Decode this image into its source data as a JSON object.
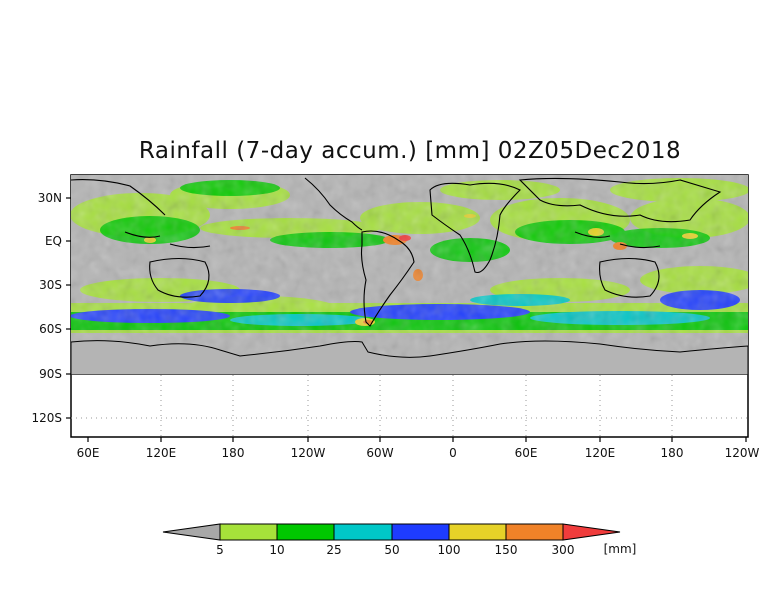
{
  "title": "Rainfall (7-day accum.) [mm] 02Z05Dec2018",
  "map": {
    "y_ticks": [
      "30N",
      "EQ",
      "30S",
      "60S",
      "90S",
      "120S"
    ],
    "x_ticks": [
      "60E",
      "120E",
      "180",
      "120W",
      "60W",
      "0",
      "60E",
      "120E",
      "180",
      "120W"
    ],
    "land_color": "#b4b4b4",
    "grid": "dotted"
  },
  "colorbar": {
    "levels": [
      "5",
      "10",
      "25",
      "50",
      "100",
      "150",
      "300"
    ],
    "unit": "[mm]",
    "colors": [
      "#a8a8a8",
      "#a6e23a",
      "#00c800",
      "#00c8c8",
      "#1e3cff",
      "#e6d228",
      "#f08228",
      "#f03c3c"
    ]
  }
}
